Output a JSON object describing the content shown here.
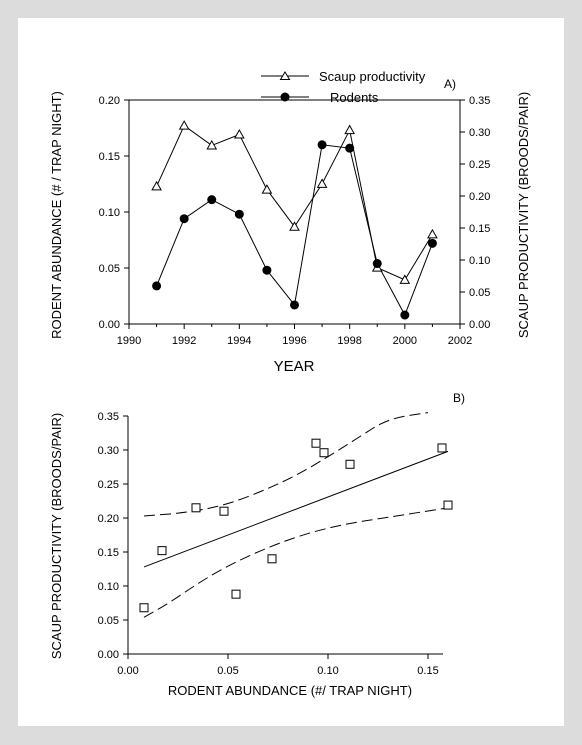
{
  "chart_data": [
    {
      "type": "line",
      "panel_label": "A)",
      "xlabel": "YEAR",
      "ylabel_left": "RODENT ABUNDANCE (# / TRAP NIGHT)",
      "ylabel_right": "SCAUP PRODUCTIVITY (BROODS/PAIR)",
      "xlim": [
        1990,
        2002
      ],
      "xticks": [
        "1990",
        "1992",
        "1994",
        "1996",
        "1998",
        "2000",
        "2002"
      ],
      "ylim_left": [
        0,
        0.2
      ],
      "yticks_left": [
        "0.00",
        "0.05",
        "0.10",
        "0.15",
        "0.20"
      ],
      "ylim_right": [
        0,
        0.35
      ],
      "yticks_right": [
        "0.00",
        "0.05",
        "0.10",
        "0.15",
        "0.20",
        "0.25",
        "0.30",
        "0.35"
      ],
      "x": [
        1991,
        1992,
        1993,
        1994,
        1995,
        1996,
        1997,
        1998,
        1999,
        2000,
        2001
      ],
      "series": [
        {
          "name": "Scaup productivity",
          "axis": "right",
          "marker": "open-triangle",
          "values": [
            0.215,
            0.31,
            0.279,
            0.296,
            0.21,
            0.152,
            0.219,
            0.303,
            0.088,
            0.069,
            0.14
          ]
        },
        {
          "name": "Rodents",
          "axis": "left",
          "marker": "filled-circle",
          "values": [
            0.034,
            0.094,
            0.111,
            0.098,
            0.048,
            0.017,
            0.16,
            0.157,
            0.054,
            0.008,
            0.072
          ]
        }
      ]
    },
    {
      "type": "scatter",
      "panel_label": "B)",
      "xlabel": "RODENT ABUNDANCE (#/ TRAP NIGHT)",
      "ylabel": "SCAUP PRODUCTIVITY (BROODS/PAIR)",
      "xlim": [
        0,
        0.17
      ],
      "xticks": [
        "0.00",
        "0.05",
        "0.10",
        "0.15"
      ],
      "ylim": [
        0,
        0.35
      ],
      "yticks": [
        "0.00",
        "0.05",
        "0.10",
        "0.15",
        "0.20",
        "0.25",
        "0.30",
        "0.35"
      ],
      "points": [
        {
          "x": 0.008,
          "y": 0.068
        },
        {
          "x": 0.017,
          "y": 0.152
        },
        {
          "x": 0.034,
          "y": 0.215
        },
        {
          "x": 0.048,
          "y": 0.21
        },
        {
          "x": 0.054,
          "y": 0.088
        },
        {
          "x": 0.072,
          "y": 0.14
        },
        {
          "x": 0.094,
          "y": 0.31
        },
        {
          "x": 0.098,
          "y": 0.296
        },
        {
          "x": 0.111,
          "y": 0.279
        },
        {
          "x": 0.157,
          "y": 0.303
        },
        {
          "x": 0.16,
          "y": 0.219
        }
      ],
      "fit_line": {
        "x": [
          0.008,
          0.16
        ],
        "y": [
          0.128,
          0.298
        ]
      },
      "ci_upper": {
        "x": [
          0.008,
          0.03,
          0.05,
          0.07,
          0.085,
          0.1,
          0.115,
          0.13,
          0.15
        ],
        "y": [
          0.203,
          0.208,
          0.22,
          0.243,
          0.264,
          0.29,
          0.318,
          0.346,
          0.355
        ]
      },
      "ci_lower": {
        "x": [
          0.008,
          0.02,
          0.035,
          0.05,
          0.07,
          0.09,
          0.11,
          0.13,
          0.16
        ],
        "y": [
          0.054,
          0.074,
          0.104,
          0.13,
          0.157,
          0.178,
          0.192,
          0.201,
          0.215
        ]
      }
    }
  ]
}
